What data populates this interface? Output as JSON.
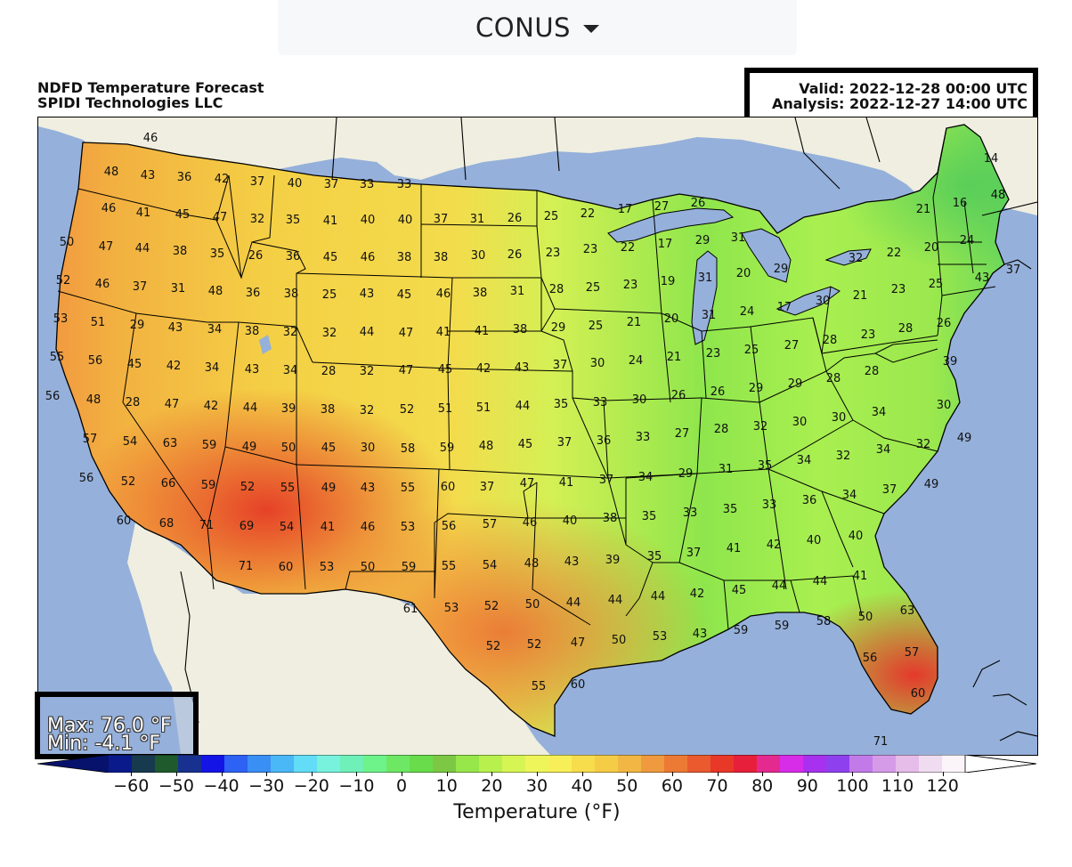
{
  "region_selector": {
    "selected": "CONUS"
  },
  "title": {
    "line1": "NDFD Temperature Forecast",
    "line2": "SPIDI Technologies LLC"
  },
  "valid_info": {
    "valid": "Valid: 2022-12-28 00:00 UTC",
    "analysis": "Analysis: 2022-12-27 14:00 UTC"
  },
  "stats": {
    "max": "Max: 76.0 °F",
    "min": "Min: -4.1 °F"
  },
  "colorbar": {
    "label": "Temperature (°F)",
    "ticks": [
      "−60",
      "−50",
      "−40",
      "−30",
      "−20",
      "−10",
      "0",
      "10",
      "20",
      "30",
      "40",
      "50",
      "60",
      "70",
      "80",
      "90",
      "100",
      "110",
      "120"
    ],
    "range": [
      -65,
      125
    ],
    "colors": [
      "#0b1a8a",
      "#173a4f",
      "#1e5a2c",
      "#18318f",
      "#1414e6",
      "#2e62f5",
      "#3a8ff5",
      "#4ab7f7",
      "#62dcf7",
      "#78f2dd",
      "#6ff0b8",
      "#6ef28a",
      "#6ee864",
      "#68dc4a",
      "#7cc844",
      "#97e64a",
      "#b8f04e",
      "#d6f554",
      "#eef55a",
      "#f8ef58",
      "#f7dc4c",
      "#f5cc46",
      "#f2b644",
      "#ef9a3e",
      "#ec7a34",
      "#ea5a2e",
      "#e83828",
      "#e81f3a",
      "#e42a8f",
      "#d72ce8",
      "#a831ef",
      "#8f40ee",
      "#c27ae8",
      "#d69be8",
      "#e6bce8",
      "#f0dcf0",
      "#fbf5fa"
    ],
    "below_color": "#06126c",
    "above_color": "#ffffff"
  },
  "map": {
    "colors": {
      "ocean": "#95b0da",
      "land": "#efeee0",
      "lake": "#95b0da"
    },
    "labels": [
      [
        "46",
        168,
        153
      ],
      [
        "48",
        124,
        191
      ],
      [
        "43",
        165,
        195
      ],
      [
        "36",
        206,
        197
      ],
      [
        "42",
        248,
        199
      ],
      [
        "37",
        288,
        202
      ],
      [
        "40",
        330,
        204
      ],
      [
        "37",
        371,
        205
      ],
      [
        "33",
        411,
        205
      ],
      [
        "33",
        453,
        205
      ],
      [
        "46",
        121,
        232
      ],
      [
        "41",
        160,
        237
      ],
      [
        "45",
        204,
        239
      ],
      [
        "47",
        246,
        242
      ],
      [
        "32",
        288,
        244
      ],
      [
        "35",
        328,
        245
      ],
      [
        "41",
        370,
        246
      ],
      [
        "40",
        412,
        245
      ],
      [
        "40",
        454,
        245
      ],
      [
        "37",
        494,
        244
      ],
      [
        "31",
        535,
        244
      ],
      [
        "26",
        577,
        243
      ],
      [
        "25",
        618,
        241
      ],
      [
        "22",
        659,
        238
      ],
      [
        "17",
        701,
        233
      ],
      [
        "27",
        742,
        230
      ],
      [
        "26",
        783,
        226
      ],
      [
        "14",
        1112,
        176
      ],
      [
        "16",
        1077,
        226
      ],
      [
        "21",
        1036,
        233
      ],
      [
        "48",
        1120,
        217
      ],
      [
        "50",
        74,
        270
      ],
      [
        "47",
        118,
        275
      ],
      [
        "44",
        159,
        277
      ],
      [
        "38",
        201,
        280
      ],
      [
        "35",
        243,
        283
      ],
      [
        "26",
        286,
        285
      ],
      [
        "36",
        328,
        286
      ],
      [
        "45",
        370,
        287
      ],
      [
        "46",
        412,
        287
      ],
      [
        "38",
        453,
        287
      ],
      [
        "38",
        494,
        287
      ],
      [
        "30",
        536,
        285
      ],
      [
        "26",
        577,
        284
      ],
      [
        "23",
        620,
        282
      ],
      [
        "23",
        662,
        278
      ],
      [
        "22",
        704,
        276
      ],
      [
        "17",
        746,
        272
      ],
      [
        "29",
        788,
        268
      ],
      [
        "31",
        828,
        265
      ],
      [
        "24",
        1085,
        268
      ],
      [
        "20",
        1045,
        276
      ],
      [
        "22",
        1003,
        282
      ],
      [
        "32",
        960,
        288
      ],
      [
        "52",
        70,
        313
      ],
      [
        "46",
        114,
        317
      ],
      [
        "37",
        156,
        320
      ],
      [
        "31",
        199,
        322
      ],
      [
        "48",
        241,
        325
      ],
      [
        "36",
        283,
        327
      ],
      [
        "38",
        326,
        328
      ],
      [
        "25",
        369,
        329
      ],
      [
        "43",
        411,
        328
      ],
      [
        "45",
        453,
        329
      ],
      [
        "46",
        497,
        328
      ],
      [
        "38",
        538,
        327
      ],
      [
        "31",
        580,
        325
      ],
      [
        "28",
        624,
        323
      ],
      [
        "25",
        665,
        321
      ],
      [
        "23",
        707,
        318
      ],
      [
        "19",
        749,
        314
      ],
      [
        "31",
        791,
        310
      ],
      [
        "20",
        834,
        305
      ],
      [
        "29",
        876,
        300
      ],
      [
        "25",
        1050,
        317
      ],
      [
        "23",
        1008,
        323
      ],
      [
        "21",
        965,
        330
      ],
      [
        "30",
        923,
        336
      ],
      [
        "37",
        1137,
        301
      ],
      [
        "43",
        1102,
        310
      ],
      [
        "53",
        67,
        356
      ],
      [
        "51",
        109,
        360
      ],
      [
        "29",
        153,
        363
      ],
      [
        "43",
        196,
        366
      ],
      [
        "34",
        240,
        368
      ],
      [
        "38",
        282,
        370
      ],
      [
        "32",
        325,
        371
      ],
      [
        "32",
        369,
        372
      ],
      [
        "44",
        411,
        371
      ],
      [
        "47",
        455,
        372
      ],
      [
        "41",
        497,
        371
      ],
      [
        "41",
        540,
        370
      ],
      [
        "38",
        583,
        368
      ],
      [
        "29",
        626,
        366
      ],
      [
        "25",
        668,
        364
      ],
      [
        "21",
        711,
        360
      ],
      [
        "20",
        753,
        356
      ],
      [
        "31",
        795,
        352
      ],
      [
        "24",
        838,
        348
      ],
      [
        "17",
        880,
        343
      ],
      [
        "27",
        888,
        386
      ],
      [
        "26",
        1059,
        361
      ],
      [
        "28",
        1016,
        367
      ],
      [
        "23",
        974,
        374
      ],
      [
        "28",
        931,
        380
      ],
      [
        "55",
        63,
        399
      ],
      [
        "56",
        106,
        403
      ],
      [
        "45",
        150,
        407
      ],
      [
        "42",
        194,
        409
      ],
      [
        "34",
        237,
        411
      ],
      [
        "43",
        282,
        413
      ],
      [
        "34",
        325,
        414
      ],
      [
        "28",
        368,
        415
      ],
      [
        "32",
        411,
        415
      ],
      [
        "47",
        455,
        414
      ],
      [
        "45",
        499,
        413
      ],
      [
        "42",
        542,
        412
      ],
      [
        "43",
        585,
        411
      ],
      [
        "37",
        628,
        408
      ],
      [
        "30",
        670,
        406
      ],
      [
        "24",
        713,
        403
      ],
      [
        "21",
        756,
        399
      ],
      [
        "23",
        800,
        395
      ],
      [
        "25",
        843,
        391
      ],
      [
        "39",
        1066,
        404
      ],
      [
        "28",
        978,
        415
      ],
      [
        "28",
        935,
        423
      ],
      [
        "29",
        892,
        429
      ],
      [
        "56",
        58,
        443
      ],
      [
        "48",
        104,
        447
      ],
      [
        "28",
        148,
        450
      ],
      [
        "47",
        192,
        452
      ],
      [
        "42",
        236,
        454
      ],
      [
        "44",
        280,
        456
      ],
      [
        "39",
        323,
        457
      ],
      [
        "38",
        367,
        458
      ],
      [
        "32",
        411,
        459
      ],
      [
        "52",
        456,
        458
      ],
      [
        "51",
        499,
        457
      ],
      [
        "51",
        542,
        456
      ],
      [
        "44",
        586,
        454
      ],
      [
        "35",
        629,
        452
      ],
      [
        "33",
        673,
        450
      ],
      [
        "30",
        717,
        447
      ],
      [
        "26",
        761,
        442
      ],
      [
        "26",
        805,
        438
      ],
      [
        "29",
        848,
        434
      ],
      [
        "30",
        1059,
        453
      ],
      [
        "34",
        986,
        461
      ],
      [
        "30",
        941,
        467
      ],
      [
        "30",
        897,
        472
      ],
      [
        "32",
        853,
        477
      ],
      [
        "57",
        100,
        491
      ],
      [
        "54",
        145,
        494
      ],
      [
        "63",
        190,
        496
      ],
      [
        "59",
        234,
        498
      ],
      [
        "49",
        279,
        500
      ],
      [
        "50",
        323,
        501
      ],
      [
        "45",
        368,
        501
      ],
      [
        "30",
        412,
        501
      ],
      [
        "58",
        457,
        502
      ],
      [
        "59",
        501,
        501
      ],
      [
        "48",
        545,
        499
      ],
      [
        "45",
        589,
        497
      ],
      [
        "37",
        633,
        495
      ],
      [
        "36",
        677,
        493
      ],
      [
        "33",
        721,
        489
      ],
      [
        "27",
        765,
        485
      ],
      [
        "28",
        809,
        480
      ],
      [
        "49",
        1082,
        490
      ],
      [
        "32",
        1036,
        497
      ],
      [
        "34",
        991,
        503
      ],
      [
        "32",
        946,
        510
      ],
      [
        "34",
        902,
        515
      ],
      [
        "35",
        858,
        521
      ],
      [
        "56",
        96,
        535
      ],
      [
        "52",
        143,
        539
      ],
      [
        "66",
        188,
        541
      ],
      [
        "59",
        233,
        543
      ],
      [
        "52",
        277,
        545
      ],
      [
        "55",
        322,
        546
      ],
      [
        "49",
        368,
        546
      ],
      [
        "43",
        412,
        546
      ],
      [
        "55",
        457,
        546
      ],
      [
        "60",
        502,
        545
      ],
      [
        "37",
        546,
        545
      ],
      [
        "47",
        591,
        541
      ],
      [
        "41",
        635,
        540
      ],
      [
        "37",
        680,
        537
      ],
      [
        "34",
        724,
        534
      ],
      [
        "29",
        769,
        530
      ],
      [
        "31",
        814,
        525
      ],
      [
        "49",
        1045,
        542
      ],
      [
        "37",
        998,
        548
      ],
      [
        "34",
        953,
        554
      ],
      [
        "36",
        908,
        560
      ],
      [
        "33",
        863,
        565
      ],
      [
        "35",
        819,
        570
      ],
      [
        "33",
        774,
        574
      ],
      [
        "60",
        138,
        583
      ],
      [
        "68",
        186,
        586
      ],
      [
        "71",
        231,
        588
      ],
      [
        "69",
        276,
        589
      ],
      [
        "54",
        321,
        590
      ],
      [
        "41",
        367,
        590
      ],
      [
        "46",
        412,
        590
      ],
      [
        "53",
        457,
        590
      ],
      [
        "56",
        503,
        589
      ],
      [
        "57",
        549,
        587
      ],
      [
        "46",
        594,
        585
      ],
      [
        "40",
        639,
        583
      ],
      [
        "38",
        684,
        580
      ],
      [
        "35",
        728,
        578
      ],
      [
        "40",
        960,
        600
      ],
      [
        "40",
        913,
        605
      ],
      [
        "42",
        868,
        610
      ],
      [
        "41",
        823,
        614
      ],
      [
        "37",
        778,
        619
      ],
      [
        "71",
        275,
        634
      ],
      [
        "60",
        320,
        635
      ],
      [
        "53",
        366,
        635
      ],
      [
        "50",
        412,
        635
      ],
      [
        "59",
        458,
        635
      ],
      [
        "55",
        503,
        634
      ],
      [
        "54",
        549,
        633
      ],
      [
        "48",
        596,
        631
      ],
      [
        "43",
        641,
        629
      ],
      [
        "39",
        687,
        627
      ],
      [
        "35",
        734,
        623
      ],
      [
        "41",
        965,
        645
      ],
      [
        "44",
        920,
        651
      ],
      [
        "44",
        874,
        656
      ],
      [
        "45",
        829,
        661
      ],
      [
        "42",
        782,
        665
      ],
      [
        "44",
        738,
        668
      ],
      [
        "44",
        690,
        672
      ],
      [
        "61",
        460,
        682
      ],
      [
        "53",
        506,
        681
      ],
      [
        "52",
        551,
        679
      ],
      [
        "50",
        597,
        677
      ],
      [
        "44",
        643,
        675
      ],
      [
        "63",
        1018,
        684
      ],
      [
        "50",
        971,
        691
      ],
      [
        "58",
        924,
        696
      ],
      [
        "59",
        877,
        701
      ],
      [
        "59",
        831,
        706
      ],
      [
        "43",
        785,
        710
      ],
      [
        "53",
        740,
        713
      ],
      [
        "50",
        694,
        717
      ],
      [
        "47",
        648,
        720
      ],
      [
        "52",
        553,
        724
      ],
      [
        "52",
        599,
        722
      ],
      [
        "57",
        1023,
        731
      ],
      [
        "56",
        976,
        737
      ],
      [
        "55",
        604,
        769
      ],
      [
        "60",
        648,
        767
      ],
      [
        "60",
        1030,
        777
      ],
      [
        "71",
        988,
        831
      ]
    ]
  }
}
